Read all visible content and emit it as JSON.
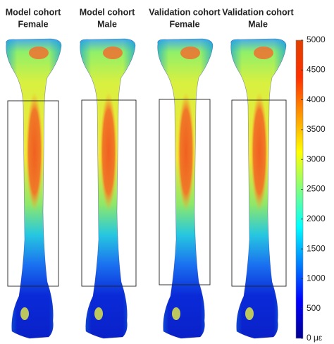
{
  "panels": [
    {
      "title": [
        "Model cohort",
        "Female"
      ]
    },
    {
      "title": [
        "Model cohort",
        "Male"
      ]
    },
    {
      "title": [
        "Validation cohort",
        "Female"
      ]
    },
    {
      "title": [
        "Validation cohort",
        "Male"
      ]
    }
  ],
  "colorbar": {
    "lim": [
      0,
      5000
    ],
    "ticks": [
      {
        "value": 0,
        "label": "0 με"
      },
      500,
      1000,
      1500,
      2000,
      2500,
      3000,
      3500,
      4000,
      4500,
      5000
    ]
  }
}
